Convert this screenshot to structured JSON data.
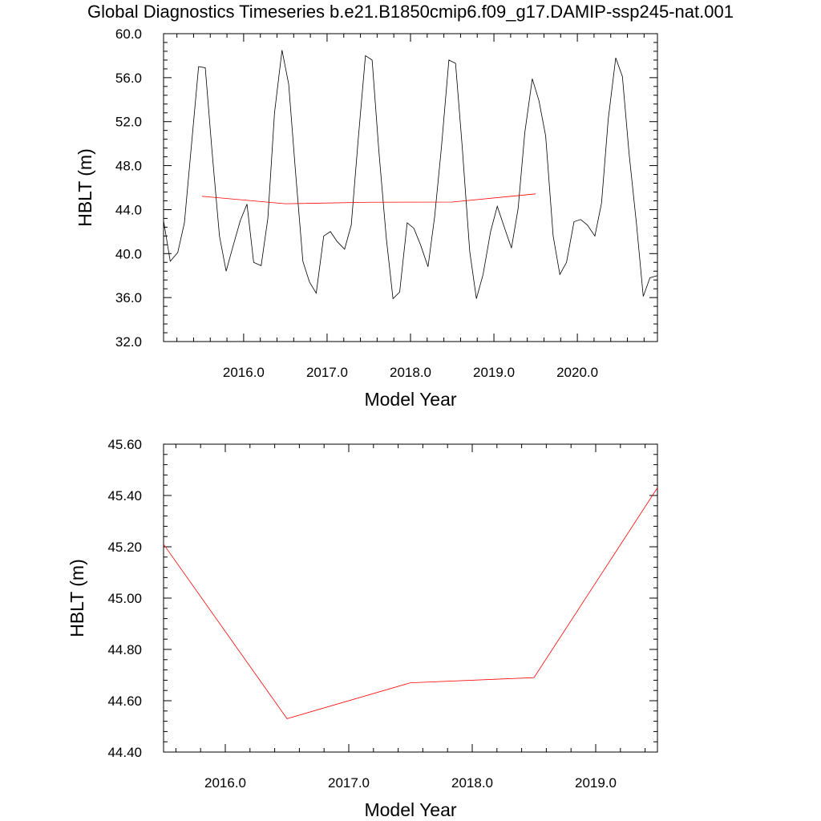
{
  "page_title": "Global Diagnostics Timeseries b.e21.B1850cmip6.f09_g17.DAMIP-ssp245-nat.001",
  "chart_data": [
    {
      "type": "line",
      "xlabel": "Model Year",
      "ylabel": "HBLT (m)",
      "xlim": [
        2015.04,
        2020.96
      ],
      "ylim": [
        32.0,
        60.0
      ],
      "yticks": [
        32.0,
        36.0,
        40.0,
        44.0,
        48.0,
        52.0,
        56.0,
        60.0
      ],
      "ytick_labels": [
        "32.0",
        "36.0",
        "40.0",
        "44.0",
        "48.0",
        "52.0",
        "56.0",
        "60.0"
      ],
      "xticks": [
        2016,
        2017,
        2018,
        2019,
        2020
      ],
      "xtick_labels": [
        "2016.0",
        "2017.0",
        "2018.0",
        "2019.0",
        "2020.0"
      ],
      "series": [
        {
          "color": "#000000",
          "x": [
            2015.04,
            2015.12,
            2015.21,
            2015.29,
            2015.37,
            2015.46,
            2015.54,
            2015.62,
            2015.71,
            2015.79,
            2015.87,
            2015.96,
            2016.04,
            2016.12,
            2016.21,
            2016.29,
            2016.37,
            2016.46,
            2016.54,
            2016.62,
            2016.71,
            2016.79,
            2016.87,
            2016.96,
            2017.04,
            2017.12,
            2017.21,
            2017.29,
            2017.37,
            2017.46,
            2017.54,
            2017.62,
            2017.71,
            2017.79,
            2017.87,
            2017.96,
            2018.04,
            2018.12,
            2018.21,
            2018.29,
            2018.37,
            2018.46,
            2018.54,
            2018.62,
            2018.71,
            2018.79,
            2018.87,
            2018.96,
            2019.04,
            2019.12,
            2019.21,
            2019.29,
            2019.37,
            2019.46,
            2019.54,
            2019.62,
            2019.71,
            2019.79,
            2019.87,
            2019.96,
            2020.04,
            2020.12,
            2020.21,
            2020.29,
            2020.37,
            2020.46,
            2020.54,
            2020.62,
            2020.71,
            2020.79,
            2020.87,
            2020.96
          ],
          "y": [
            43.0,
            39.3,
            40.1,
            42.8,
            49.5,
            57.0,
            56.9,
            49.4,
            41.6,
            38.4,
            40.6,
            43.0,
            44.5,
            39.2,
            38.9,
            43.2,
            52.8,
            58.5,
            55.4,
            47.6,
            39.3,
            37.4,
            36.4,
            41.6,
            42.0,
            41.1,
            40.4,
            42.6,
            50.1,
            58.0,
            57.6,
            49.4,
            41.4,
            35.9,
            36.5,
            42.8,
            42.3,
            40.8,
            38.8,
            43.4,
            49.6,
            57.6,
            57.3,
            49.7,
            40.2,
            35.9,
            38.1,
            42.0,
            44.3,
            42.5,
            40.5,
            44.1,
            51.0,
            55.9,
            53.9,
            50.7,
            41.6,
            38.1,
            39.2,
            42.9,
            43.1,
            42.6,
            41.6,
            44.6,
            52.2,
            57.8,
            56.1,
            49.1,
            42.6,
            36.1,
            37.8,
            38.0
          ]
        },
        {
          "color": "#ff0000",
          "x": [
            2015.5,
            2016.5,
            2017.5,
            2018.5,
            2019.5
          ],
          "y": [
            45.21,
            44.53,
            44.67,
            44.69,
            45.43
          ]
        }
      ]
    },
    {
      "type": "line",
      "xlabel": "Model Year",
      "ylabel": "HBLT (m)",
      "xlim": [
        2015.5,
        2019.5
      ],
      "ylim": [
        44.4,
        45.6
      ],
      "yticks": [
        44.4,
        44.6,
        44.8,
        45.0,
        45.2,
        45.4,
        45.6
      ],
      "ytick_labels": [
        "44.40",
        "44.60",
        "44.80",
        "45.00",
        "45.20",
        "45.40",
        "45.60"
      ],
      "xticks": [
        2016,
        2017,
        2018,
        2019
      ],
      "xtick_labels": [
        "2016.0",
        "2017.0",
        "2018.0",
        "2019.0"
      ],
      "series": [
        {
          "color": "#ff0000",
          "x": [
            2015.5,
            2016.5,
            2017.5,
            2018.5,
            2019.5
          ],
          "y": [
            45.21,
            44.53,
            44.67,
            44.69,
            45.43
          ]
        }
      ]
    }
  ]
}
